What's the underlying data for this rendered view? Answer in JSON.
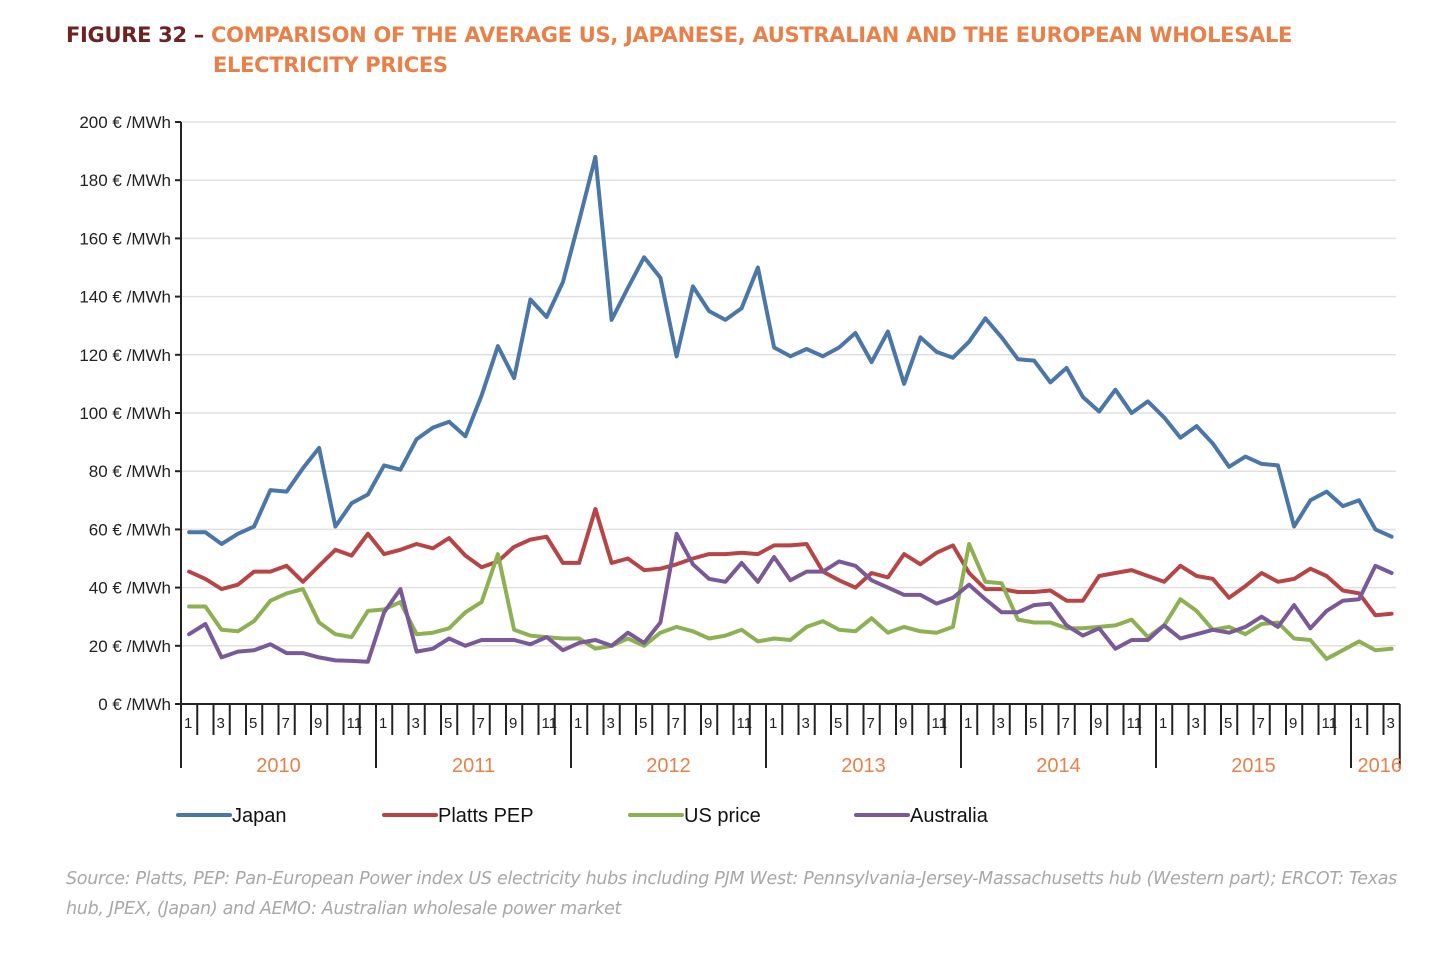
{
  "figure": {
    "number_label": "FIGURE 32 –",
    "title_line1": "COMPARISON OF THE AVERAGE US, JAPANESE, AUSTRALIAN AND THE EUROPEAN WHOLESALE",
    "title_line2": "ELECTRICITY PRICES",
    "source": "Source: Platts, PEP: Pan-European Power index US electricity hubs including PJM West: Pennsylvania-Jersey-Massachusetts hub (Western part); ERCOT: Texas hub, JPEX, (Japan) and AEMO: Australian wholesale power market"
  },
  "colors": {
    "title_dark": "#6b2323",
    "title_accent": "#e8804a",
    "year_label": "#e8804a",
    "grid": "#e0e0e0",
    "axis": "#222222"
  },
  "chart_data": {
    "type": "line",
    "title": "Comparison of the average US, Japanese, Australian and the European wholesale electricity prices",
    "xlabel": "",
    "ylabel": "€ /MWh",
    "ylim": [
      0,
      200
    ],
    "yticks": [
      0,
      20,
      40,
      60,
      80,
      100,
      120,
      140,
      160,
      180,
      200
    ],
    "ytick_labels": [
      "0 € /MWh",
      "20 € /MWh",
      "40 € /MWh",
      "60 € /MWh",
      "80 € /MWh",
      "100 € /MWh",
      "120 € /MWh",
      "140 € /MWh",
      "160 € /MWh",
      "180 € /MWh",
      "200 € /MWh"
    ],
    "grid": true,
    "legend_position": "bottom",
    "x_start": "2010-01",
    "x_end": "2016-03",
    "month_tick_labels": [
      "1",
      "",
      "3",
      "",
      "5",
      "",
      "7",
      "",
      "9",
      "",
      "11",
      ""
    ],
    "years": [
      "2010",
      "2011",
      "2012",
      "2013",
      "2014",
      "2015",
      "2016"
    ],
    "series": [
      {
        "name": "Japan",
        "color": "#4a76a8",
        "values": [
          59,
          59,
          55,
          58.5,
          61,
          73.5,
          73,
          81,
          88,
          61,
          69,
          72,
          82,
          80.5,
          91,
          95,
          97,
          92,
          106,
          123,
          112,
          139,
          133,
          145,
          166,
          188,
          132,
          143,
          153.5,
          146.5,
          119.5,
          143.5,
          135,
          132,
          136,
          150,
          122.5,
          119.5,
          122,
          119.5,
          122.5,
          127.5,
          117.5,
          128,
          110,
          126,
          121,
          119,
          124.5,
          132.5,
          126,
          118.5,
          118,
          110.5,
          115.5,
          105.5,
          100.5,
          108,
          100,
          104,
          98.5,
          91.5,
          95.5,
          89.5,
          81.5,
          85,
          82.5,
          82,
          61,
          70,
          73,
          68,
          70,
          60,
          57.5
        ]
      },
      {
        "name": "Platts PEP",
        "color": "#b84545",
        "values": [
          45.5,
          43,
          39.5,
          41,
          45.5,
          45.5,
          47.5,
          42,
          47.5,
          53,
          51,
          58.5,
          51.5,
          53,
          55,
          53.5,
          57,
          51,
          47,
          49,
          54,
          56.5,
          57.5,
          48.5,
          48.5,
          67,
          48.5,
          50,
          46,
          46.5,
          48,
          50,
          51.5,
          51.5,
          52,
          51.5,
          54.5,
          54.5,
          55,
          45.5,
          42.5,
          40,
          45,
          43.5,
          51.5,
          48,
          52,
          54.5,
          45,
          39.5,
          39.5,
          38.5,
          38.5,
          39,
          35.5,
          35.5,
          44,
          45,
          46,
          44,
          42,
          47.5,
          44,
          43,
          36.5,
          40.5,
          45,
          42,
          43,
          46.5,
          44,
          39,
          38,
          30.5,
          31
        ]
      },
      {
        "name": "US price",
        "color": "#8db152",
        "values": [
          33.5,
          33.5,
          25.5,
          25,
          28.5,
          35.5,
          38,
          39.5,
          28,
          24,
          23,
          32,
          32.5,
          35,
          24,
          24.5,
          26,
          31.5,
          35,
          51.5,
          25.5,
          23.5,
          23,
          22.5,
          22.5,
          19,
          20,
          22.5,
          20,
          24.5,
          26.5,
          25,
          22.5,
          23.5,
          25.5,
          21.5,
          22.5,
          22,
          26.5,
          28.5,
          25.5,
          25,
          29.5,
          24.5,
          26.5,
          25,
          24.5,
          26.5,
          55,
          42,
          41.5,
          29,
          28,
          28,
          26,
          26,
          26.5,
          27,
          29,
          23,
          27,
          36,
          32,
          25.5,
          26.5,
          24,
          27.5,
          28,
          22.5,
          22,
          15.5,
          18.5,
          21.5,
          18.5,
          19
        ]
      },
      {
        "name": "Australia",
        "color": "#7a5a96",
        "values": [
          24,
          27.5,
          16,
          18,
          18.5,
          20.5,
          17.5,
          17.5,
          16,
          15,
          14.8,
          14.5,
          31.5,
          39.5,
          18,
          19,
          22.5,
          20,
          22,
          22,
          22,
          20.5,
          23,
          18.5,
          21,
          22,
          20,
          24.5,
          21,
          28,
          58.5,
          48,
          43,
          42,
          48.5,
          42,
          50.5,
          42.5,
          45.5,
          45.5,
          49,
          47.5,
          42.5,
          40,
          37.5,
          37.5,
          34.5,
          36.5,
          41,
          36,
          31.5,
          31.5,
          34,
          34.5,
          27,
          23.5,
          26,
          19,
          22,
          22,
          27,
          22.5,
          24,
          25.5,
          24.5,
          26.5,
          30,
          26.5,
          34,
          26,
          32,
          35.5,
          36,
          47.5,
          45
        ]
      }
    ]
  }
}
